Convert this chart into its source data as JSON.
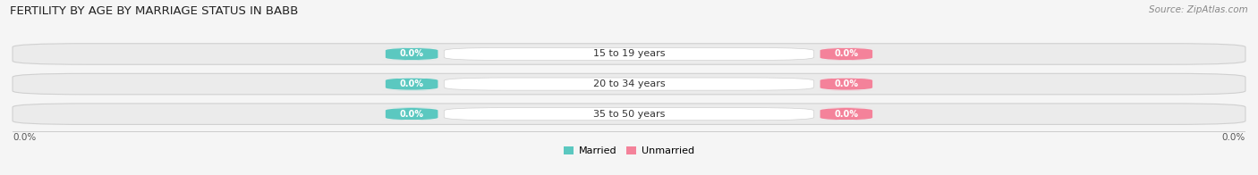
{
  "title": "FERTILITY BY AGE BY MARRIAGE STATUS IN BABB",
  "source": "Source: ZipAtlas.com",
  "categories": [
    "15 to 19 years",
    "20 to 34 years",
    "35 to 50 years"
  ],
  "married_values": [
    0.0,
    0.0,
    0.0
  ],
  "unmarried_values": [
    0.0,
    0.0,
    0.0
  ],
  "married_color": "#5bc8c0",
  "unmarried_color": "#f4829a",
  "bar_bg_color": "#ebebeb",
  "bar_bg_edge_color": "#d0d0d0",
  "center_pill_color": "#ffffff",
  "xlim_left": -1.0,
  "xlim_right": 1.0,
  "axis_label_left": "0.0%",
  "axis_label_right": "0.0%",
  "legend_married": "Married",
  "legend_unmarried": "Unmarried",
  "title_fontsize": 9.5,
  "source_fontsize": 7.5,
  "value_fontsize": 7.0,
  "cat_fontsize": 8.0,
  "legend_fontsize": 8.0,
  "axis_tick_fontsize": 7.5,
  "fig_bg_color": "#f5f5f5"
}
